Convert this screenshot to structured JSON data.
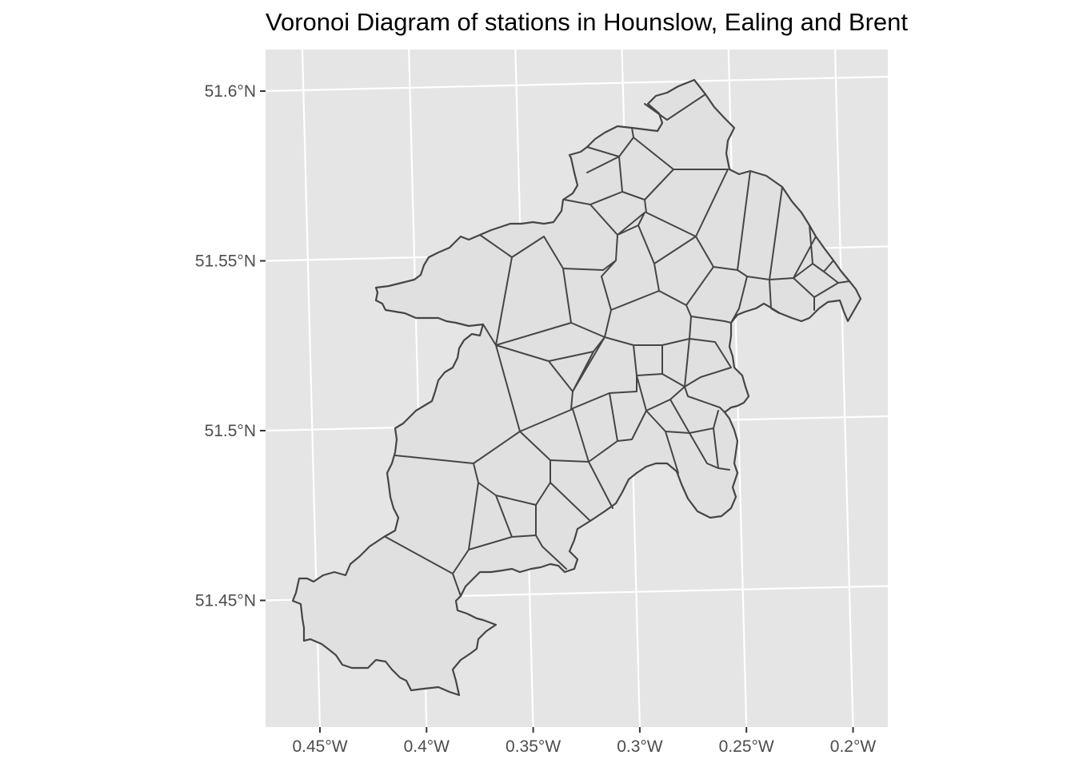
{
  "chart_data": {
    "type": "map",
    "title": "Voronoi Diagram of stations in Hounslow, Ealing and Brent",
    "regions": [
      "Hounslow",
      "Ealing",
      "Brent"
    ],
    "x_axis": {
      "tick_labels": [
        "0.45°W",
        "0.4°W",
        "0.35°W",
        "0.3°W",
        "0.25°W",
        "0.2°W"
      ],
      "ticks": [
        -0.45,
        -0.4,
        -0.35,
        -0.3,
        -0.25,
        -0.2
      ]
    },
    "y_axis": {
      "tick_labels": [
        "51.6°N",
        "51.55°N",
        "51.5°N",
        "51.45°N"
      ],
      "ticks": [
        51.6,
        51.55,
        51.5,
        51.45
      ]
    },
    "grid": true,
    "panel_color": "#e5e5e5",
    "fill_color": "#e0e0e0",
    "edge_color": "#454545"
  }
}
